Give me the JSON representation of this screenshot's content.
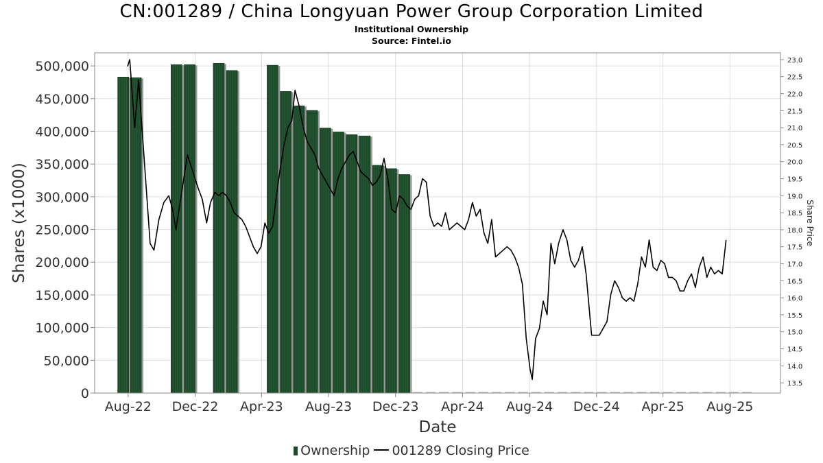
{
  "header": {
    "title": "CN:001289 / China Longyuan Power Group Corporation Limited",
    "subtitle": "Institutional Ownership",
    "source": "Source: Fintel.io"
  },
  "legend": {
    "ownership_label": "Ownership",
    "price_label": "001289 Closing Price"
  },
  "colors": {
    "bar": "#1f4a2b",
    "bar_shadow": "#999999",
    "line": "#000000",
    "grid": "#dddddd"
  },
  "chart_data": {
    "type": "bar",
    "xlabel": "Date",
    "ylabel": "Shares (x1000)",
    "y2label": "Share Price",
    "ylim": [
      0,
      520000
    ],
    "y2lim": [
      13.2,
      23.2
    ],
    "xlim": [
      "2022-06-01",
      "2025-11-01"
    ],
    "x_ticks": [
      {
        "date": "2022-08-01",
        "label": "Aug-22"
      },
      {
        "date": "2022-12-01",
        "label": "Dec-22"
      },
      {
        "date": "2023-04-01",
        "label": "Apr-23"
      },
      {
        "date": "2023-08-01",
        "label": "Aug-23"
      },
      {
        "date": "2023-12-01",
        "label": "Dec-23"
      },
      {
        "date": "2024-04-01",
        "label": "Apr-24"
      },
      {
        "date": "2024-08-01",
        "label": "Aug-24"
      },
      {
        "date": "2024-12-01",
        "label": "Dec-24"
      },
      {
        "date": "2025-04-01",
        "label": "Apr-25"
      },
      {
        "date": "2025-08-01",
        "label": "Aug-25"
      }
    ],
    "y_ticks": [
      {
        "value": 0,
        "label": "0"
      },
      {
        "value": 50000,
        "label": "50,000"
      },
      {
        "value": 100000,
        "label": "100,000"
      },
      {
        "value": 150000,
        "label": "150,000"
      },
      {
        "value": 200000,
        "label": "200,000"
      },
      {
        "value": 250000,
        "label": "250,000"
      },
      {
        "value": 300000,
        "label": "300,000"
      },
      {
        "value": 350000,
        "label": "350,000"
      },
      {
        "value": 400000,
        "label": "400,000"
      },
      {
        "value": 450000,
        "label": "450,000"
      },
      {
        "value": 500000,
        "label": "500,000"
      }
    ],
    "y2_ticks": [
      {
        "value": 13.5,
        "label": "13.5"
      },
      {
        "value": 14.0,
        "label": "14.0"
      },
      {
        "value": 14.5,
        "label": "14.5"
      },
      {
        "value": 15.0,
        "label": "15.0"
      },
      {
        "value": 15.5,
        "label": "15.5"
      },
      {
        "value": 16.0,
        "label": "16.0"
      },
      {
        "value": 16.5,
        "label": "16.5"
      },
      {
        "value": 17.0,
        "label": "17.0"
      },
      {
        "value": 17.5,
        "label": "17.5"
      },
      {
        "value": 18.0,
        "label": "18.0"
      },
      {
        "value": 18.5,
        "label": "18.5"
      },
      {
        "value": 19.0,
        "label": "19.0"
      },
      {
        "value": 19.5,
        "label": "19.5"
      },
      {
        "value": 20.0,
        "label": "20.0"
      },
      {
        "value": 20.5,
        "label": "20.5"
      },
      {
        "value": 21.0,
        "label": "21.0"
      },
      {
        "value": 21.5,
        "label": "21.5"
      },
      {
        "value": 22.0,
        "label": "22.0"
      },
      {
        "value": 22.5,
        "label": "22.5"
      },
      {
        "value": 23.0,
        "label": "23.0"
      }
    ],
    "series": [
      {
        "name": "Ownership",
        "kind": "bar",
        "points": [
          {
            "date": "2022-07-23",
            "value": 483000
          },
          {
            "date": "2022-08-15",
            "value": 482000
          },
          {
            "date": "2022-10-28",
            "value": 502000
          },
          {
            "date": "2022-11-21",
            "value": 502000
          },
          {
            "date": "2023-01-13",
            "value": 504000
          },
          {
            "date": "2023-02-06",
            "value": 493000
          },
          {
            "date": "2023-04-21",
            "value": 501000
          },
          {
            "date": "2023-05-15",
            "value": 461000
          },
          {
            "date": "2023-06-08",
            "value": 439000
          },
          {
            "date": "2023-07-02",
            "value": 432000
          },
          {
            "date": "2023-07-26",
            "value": 405000
          },
          {
            "date": "2023-08-19",
            "value": 399000
          },
          {
            "date": "2023-09-12",
            "value": 395000
          },
          {
            "date": "2023-10-06",
            "value": 393000
          },
          {
            "date": "2023-10-30",
            "value": 348000
          },
          {
            "date": "2023-11-23",
            "value": 343000
          },
          {
            "date": "2023-12-17",
            "value": 334000
          }
        ]
      },
      {
        "name": "001289 Closing Price",
        "kind": "line",
        "points": [
          {
            "date": "2022-07-31",
            "value": 22.8
          },
          {
            "date": "2022-08-04",
            "value": 23.0
          },
          {
            "date": "2022-08-13",
            "value": 21.0
          },
          {
            "date": "2022-08-20",
            "value": 22.4
          },
          {
            "date": "2022-09-10",
            "value": 17.6
          },
          {
            "date": "2022-09-17",
            "value": 17.4
          },
          {
            "date": "2022-09-26",
            "value": 18.3
          },
          {
            "date": "2022-10-05",
            "value": 18.8
          },
          {
            "date": "2022-10-14",
            "value": 19.0
          },
          {
            "date": "2022-10-21",
            "value": 18.6
          },
          {
            "date": "2022-10-27",
            "value": 18.0
          },
          {
            "date": "2022-11-17",
            "value": 20.2
          },
          {
            "date": "2022-11-29",
            "value": 19.6
          },
          {
            "date": "2022-12-07",
            "value": 19.2
          },
          {
            "date": "2022-12-14",
            "value": 18.9
          },
          {
            "date": "2022-12-22",
            "value": 18.2
          },
          {
            "date": "2022-12-29",
            "value": 18.8
          },
          {
            "date": "2023-01-06",
            "value": 19.1
          },
          {
            "date": "2023-01-13",
            "value": 19.0
          },
          {
            "date": "2023-01-20",
            "value": 19.1
          },
          {
            "date": "2023-01-27",
            "value": 19.0
          },
          {
            "date": "2023-02-03",
            "value": 18.8
          },
          {
            "date": "2023-02-10",
            "value": 18.5
          },
          {
            "date": "2023-02-24",
            "value": 18.3
          },
          {
            "date": "2023-03-03",
            "value": 18.1
          },
          {
            "date": "2023-03-10",
            "value": 17.8
          },
          {
            "date": "2023-03-17",
            "value": 17.5
          },
          {
            "date": "2023-03-24",
            "value": 17.3
          },
          {
            "date": "2023-03-31",
            "value": 17.5
          },
          {
            "date": "2023-04-07",
            "value": 18.2
          },
          {
            "date": "2023-04-14",
            "value": 17.9
          },
          {
            "date": "2023-04-21",
            "value": 18.1
          },
          {
            "date": "2023-04-28",
            "value": 19.0
          },
          {
            "date": "2023-05-05",
            "value": 19.8
          },
          {
            "date": "2023-05-12",
            "value": 20.5
          },
          {
            "date": "2023-05-19",
            "value": 21.0
          },
          {
            "date": "2023-05-26",
            "value": 21.2
          },
          {
            "date": "2023-06-01",
            "value": 22.1
          },
          {
            "date": "2023-06-09",
            "value": 21.6
          },
          {
            "date": "2023-06-16",
            "value": 21.0
          },
          {
            "date": "2023-06-23",
            "value": 20.6
          },
          {
            "date": "2023-06-30",
            "value": 20.4
          },
          {
            "date": "2023-07-07",
            "value": 20.2
          },
          {
            "date": "2023-07-14",
            "value": 19.8
          },
          {
            "date": "2023-07-21",
            "value": 19.6
          },
          {
            "date": "2023-07-28",
            "value": 19.4
          },
          {
            "date": "2023-08-04",
            "value": 19.2
          },
          {
            "date": "2023-08-11",
            "value": 19.0
          },
          {
            "date": "2023-08-18",
            "value": 19.5
          },
          {
            "date": "2023-08-25",
            "value": 19.8
          },
          {
            "date": "2023-09-01",
            "value": 20.0
          },
          {
            "date": "2023-09-08",
            "value": 20.2
          },
          {
            "date": "2023-09-15",
            "value": 20.3
          },
          {
            "date": "2023-09-22",
            "value": 20.0
          },
          {
            "date": "2023-09-29",
            "value": 19.7
          },
          {
            "date": "2023-10-13",
            "value": 19.5
          },
          {
            "date": "2023-10-20",
            "value": 19.3
          },
          {
            "date": "2023-10-27",
            "value": 19.4
          },
          {
            "date": "2023-11-03",
            "value": 19.6
          },
          {
            "date": "2023-11-10",
            "value": 20.1
          },
          {
            "date": "2023-11-17",
            "value": 19.5
          },
          {
            "date": "2023-11-24",
            "value": 18.6
          },
          {
            "date": "2023-12-01",
            "value": 18.5
          },
          {
            "date": "2023-12-08",
            "value": 19.0
          },
          {
            "date": "2023-12-15",
            "value": 18.9
          },
          {
            "date": "2023-12-22",
            "value": 18.7
          },
          {
            "date": "2023-12-29",
            "value": 18.6
          },
          {
            "date": "2024-01-05",
            "value": 18.9
          },
          {
            "date": "2024-01-12",
            "value": 19.0
          },
          {
            "date": "2024-01-19",
            "value": 19.5
          },
          {
            "date": "2024-01-26",
            "value": 19.4
          },
          {
            "date": "2024-02-02",
            "value": 18.4
          },
          {
            "date": "2024-02-09",
            "value": 18.1
          },
          {
            "date": "2024-02-16",
            "value": 18.2
          },
          {
            "date": "2024-02-23",
            "value": 18.1
          },
          {
            "date": "2024-03-01",
            "value": 18.5
          },
          {
            "date": "2024-03-08",
            "value": 18.0
          },
          {
            "date": "2024-03-22",
            "value": 18.2
          },
          {
            "date": "2024-04-05",
            "value": 18.0
          },
          {
            "date": "2024-04-12",
            "value": 18.3
          },
          {
            "date": "2024-04-19",
            "value": 18.8
          },
          {
            "date": "2024-04-26",
            "value": 18.4
          },
          {
            "date": "2024-05-03",
            "value": 18.6
          },
          {
            "date": "2024-05-10",
            "value": 17.9
          },
          {
            "date": "2024-05-17",
            "value": 17.6
          },
          {
            "date": "2024-05-24",
            "value": 18.3
          },
          {
            "date": "2024-05-31",
            "value": 17.2
          },
          {
            "date": "2024-06-07",
            "value": 17.3
          },
          {
            "date": "2024-06-14",
            "value": 17.4
          },
          {
            "date": "2024-06-21",
            "value": 17.5
          },
          {
            "date": "2024-06-28",
            "value": 17.4
          },
          {
            "date": "2024-07-05",
            "value": 17.2
          },
          {
            "date": "2024-07-12",
            "value": 16.9
          },
          {
            "date": "2024-07-19",
            "value": 16.4
          },
          {
            "date": "2024-07-26",
            "value": 14.8
          },
          {
            "date": "2024-08-02",
            "value": 13.9
          },
          {
            "date": "2024-08-06",
            "value": 13.6
          },
          {
            "date": "2024-08-12",
            "value": 14.8
          },
          {
            "date": "2024-08-19",
            "value": 15.1
          },
          {
            "date": "2024-08-26",
            "value": 15.9
          },
          {
            "date": "2024-09-02",
            "value": 15.5
          },
          {
            "date": "2024-09-09",
            "value": 17.6
          },
          {
            "date": "2024-09-16",
            "value": 17.0
          },
          {
            "date": "2024-09-23",
            "value": 17.6
          },
          {
            "date": "2024-10-01",
            "value": 18.0
          },
          {
            "date": "2024-10-08",
            "value": 17.7
          },
          {
            "date": "2024-10-15",
            "value": 17.1
          },
          {
            "date": "2024-10-22",
            "value": 16.9
          },
          {
            "date": "2024-10-29",
            "value": 17.1
          },
          {
            "date": "2024-11-05",
            "value": 17.5
          },
          {
            "date": "2024-11-12",
            "value": 16.7
          },
          {
            "date": "2024-11-22",
            "value": 14.9
          },
          {
            "date": "2024-11-29",
            "value": 14.9
          },
          {
            "date": "2024-12-06",
            "value": 14.9
          },
          {
            "date": "2024-12-13",
            "value": 15.1
          },
          {
            "date": "2024-12-20",
            "value": 15.3
          },
          {
            "date": "2024-12-27",
            "value": 16.1
          },
          {
            "date": "2025-01-03",
            "value": 16.5
          },
          {
            "date": "2025-01-10",
            "value": 16.3
          },
          {
            "date": "2025-01-17",
            "value": 16.0
          },
          {
            "date": "2025-01-24",
            "value": 15.9
          },
          {
            "date": "2025-01-31",
            "value": 16.0
          },
          {
            "date": "2025-02-07",
            "value": 15.9
          },
          {
            "date": "2025-02-14",
            "value": 16.4
          },
          {
            "date": "2025-02-21",
            "value": 17.2
          },
          {
            "date": "2025-02-28",
            "value": 16.9
          },
          {
            "date": "2025-03-07",
            "value": 17.7
          },
          {
            "date": "2025-03-14",
            "value": 16.9
          },
          {
            "date": "2025-03-21",
            "value": 16.8
          },
          {
            "date": "2025-03-28",
            "value": 17.1
          },
          {
            "date": "2025-04-04",
            "value": 17.0
          },
          {
            "date": "2025-04-11",
            "value": 16.6
          },
          {
            "date": "2025-04-18",
            "value": 16.6
          },
          {
            "date": "2025-04-25",
            "value": 16.5
          },
          {
            "date": "2025-05-02",
            "value": 16.2
          },
          {
            "date": "2025-05-09",
            "value": 16.2
          },
          {
            "date": "2025-05-16",
            "value": 16.5
          },
          {
            "date": "2025-05-23",
            "value": 16.7
          },
          {
            "date": "2025-05-30",
            "value": 16.3
          },
          {
            "date": "2025-06-06",
            "value": 16.9
          },
          {
            "date": "2025-06-13",
            "value": 17.2
          },
          {
            "date": "2025-06-20",
            "value": 16.6
          },
          {
            "date": "2025-06-27",
            "value": 16.9
          },
          {
            "date": "2025-07-04",
            "value": 16.7
          },
          {
            "date": "2025-07-11",
            "value": 16.8
          },
          {
            "date": "2025-07-18",
            "value": 16.7
          },
          {
            "date": "2025-07-25",
            "value": 17.7
          }
        ]
      }
    ]
  }
}
